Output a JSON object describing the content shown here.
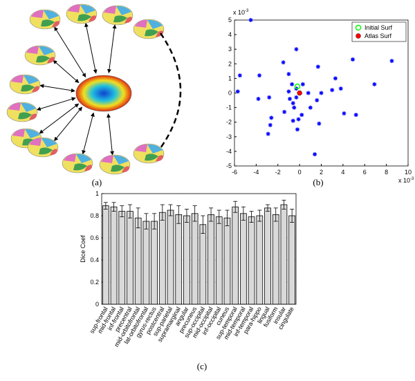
{
  "panels": {
    "a": "(a)",
    "b": "(b)",
    "c": "(c)"
  },
  "chart_data": [
    {
      "type": "scatter",
      "x": [
        -4.5,
        -5.5,
        -5.7,
        -3.7,
        -3.8,
        -2.8,
        -2.6,
        -2.7,
        -2.9,
        -1.5,
        -1.0,
        -0.3,
        -1.0,
        -0.9,
        -1.4,
        -0.6,
        -0.5,
        -0.3,
        -0.1,
        -0.6,
        0.2,
        -0.2,
        -0.7,
        0.3,
        1.0,
        0.8,
        1.7,
        2.0,
        1.6,
        1.8,
        1.4,
        3.0,
        3.3,
        3.8,
        4.9,
        4.1,
        5.2,
        6.9,
        8.5,
        -0.3
      ],
      "y": [
        5.0,
        1.2,
        0.1,
        1.2,
        -0.4,
        -0.3,
        -1.7,
        -2.2,
        -2.8,
        2.1,
        1.3,
        3.0,
        0.1,
        -0.4,
        -1.3,
        -0.7,
        -1.0,
        -0.3,
        -1.8,
        -1.9,
        -1.5,
        -2.5,
        0.6,
        0.6,
        -1.0,
        0.0,
        1.8,
        0.0,
        -0.5,
        -2.1,
        -4.2,
        0.2,
        1.0,
        0.3,
        2.3,
        -1.4,
        -1.5,
        0.6,
        2.2,
        0.3
      ],
      "color": "#0000ff",
      "highlights": [
        {
          "name": "Initial Surf",
          "color": "#00ff00",
          "x": -0.2,
          "y": 0.45,
          "marker": "open-circle"
        },
        {
          "name": "Atlas Surf",
          "color": "#ff0000",
          "x": 0,
          "y": 0,
          "marker": "dot"
        }
      ],
      "xlim": [
        -6,
        10
      ],
      "xticks": [
        -6,
        -4,
        -2,
        0,
        2,
        4,
        6,
        8,
        10
      ],
      "ylim": [
        -5,
        5
      ],
      "yticks": [
        -5,
        -4,
        -3,
        -2,
        -1,
        0,
        1,
        2,
        3,
        4,
        5
      ],
      "x_multiplier": {
        "base": "x 10",
        "exponent": "-3"
      },
      "y_multiplier": {
        "base": "x 10",
        "exponent": "-3"
      },
      "legend": "upper right"
    },
    {
      "type": "bar",
      "categories": [
        "sup-frontal",
        "mid-frontal",
        "inf-frontal",
        "precentral",
        "mid-orbitofrontal",
        "lat-orbitofrontal",
        "gyrus-rectus",
        "postcentral",
        "sup-parietal",
        "supramarginal",
        "angular",
        "precuneus",
        "sup-occipital",
        "mid-occipital",
        "inf-occipital",
        "cuneus",
        "sup-temporal",
        "mid-temporal",
        "inf-temporal",
        "para-hippo",
        "lingual",
        "fusiform",
        "insular",
        "cingulate"
      ],
      "values": [
        0.89,
        0.88,
        0.84,
        0.84,
        0.78,
        0.75,
        0.75,
        0.83,
        0.85,
        0.81,
        0.8,
        0.82,
        0.72,
        0.81,
        0.79,
        0.78,
        0.88,
        0.82,
        0.79,
        0.8,
        0.87,
        0.81,
        0.9,
        0.8
      ],
      "errors": [
        0.03,
        0.04,
        0.05,
        0.06,
        0.09,
        0.07,
        0.07,
        0.07,
        0.05,
        0.08,
        0.06,
        0.07,
        0.08,
        0.06,
        0.06,
        0.07,
        0.05,
        0.06,
        0.05,
        0.05,
        0.03,
        0.06,
        0.04,
        0.06
      ],
      "color": "#d9d9d9",
      "ylabel": "Dice Coef",
      "ylim": [
        0,
        1
      ],
      "yticks": [
        0,
        0.2,
        0.4,
        0.6,
        0.8,
        1
      ],
      "grid": true
    }
  ]
}
